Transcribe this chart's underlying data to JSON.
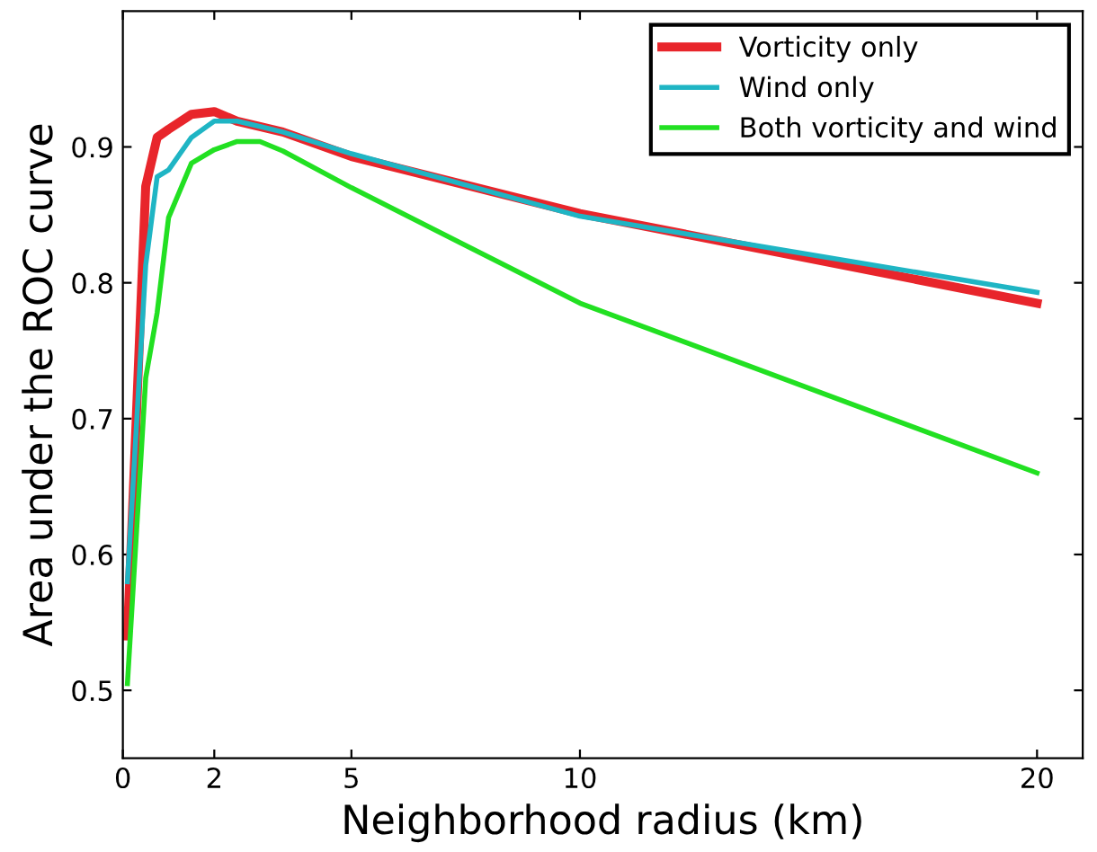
{
  "chart_data": {
    "type": "line",
    "xlabel": "Neighborhood radius (km)",
    "ylabel": "Area under the ROC curve",
    "xlim": [
      0,
      21
    ],
    "xticks": [
      0,
      2,
      5,
      10,
      20
    ],
    "ylim": [
      0.45,
      1.0
    ],
    "yticks": [
      0.5,
      0.6,
      0.7,
      0.8,
      0.9
    ],
    "x": [
      0.1,
      0.5,
      0.75,
      1,
      1.5,
      2,
      2.5,
      3,
      3.5,
      5,
      10,
      20
    ],
    "series": [
      {
        "name": "Vorticity only",
        "color": "#e8252b",
        "values": [
          0.54,
          0.871,
          0.907,
          0.913,
          0.924,
          0.926,
          0.919,
          0.915,
          0.911,
          0.893,
          0.851,
          0.785
        ]
      },
      {
        "name": "Wind only",
        "color": "#1fb5c4",
        "values": [
          0.58,
          0.813,
          0.878,
          0.883,
          0.907,
          0.919,
          0.919,
          0.915,
          0.911,
          0.895,
          0.849,
          0.793
        ]
      },
      {
        "name": "Both vorticity and wind",
        "color": "#22e022",
        "values": [
          0.505,
          0.73,
          0.778,
          0.848,
          0.888,
          0.898,
          0.904,
          0.904,
          0.897,
          0.87,
          0.785,
          0.66
        ]
      }
    ],
    "grid": false,
    "legend": "top right",
    "marker": "none",
    "line_style": "solid"
  }
}
